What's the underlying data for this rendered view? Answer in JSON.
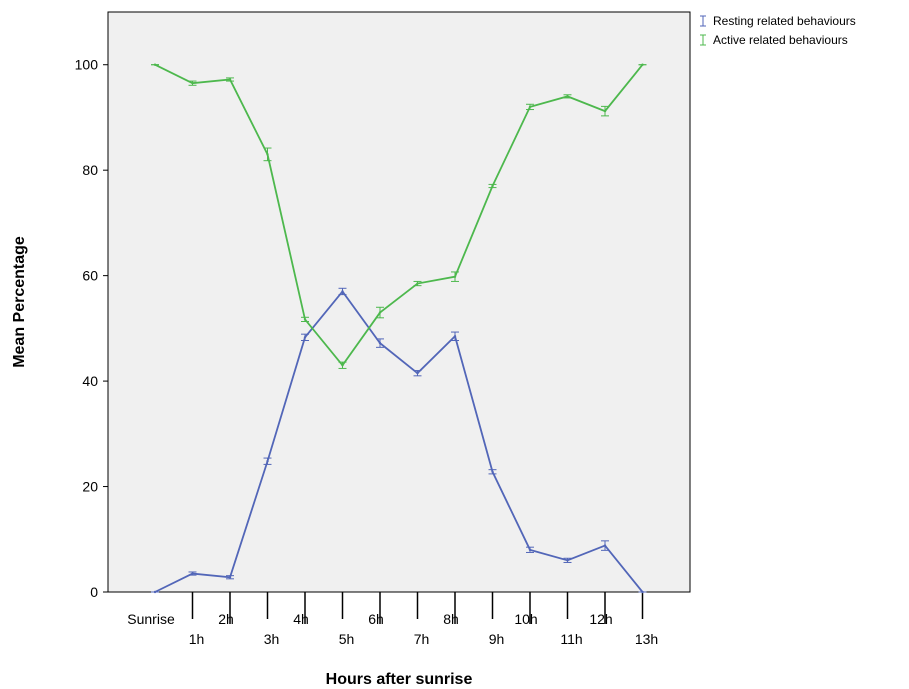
{
  "chart_data": {
    "type": "line",
    "title": "",
    "xlabel": "Hours after sunrise",
    "ylabel": "Mean Percentage",
    "categories": [
      "Sunrise",
      "1h",
      "2h",
      "3h",
      "4h",
      "5h",
      "6h",
      "7h",
      "8h",
      "9h",
      "10h",
      "11h",
      "12h",
      "13h"
    ],
    "ylim": [
      0,
      110
    ],
    "yticks": [
      0,
      20,
      40,
      60,
      80,
      100
    ],
    "grid": false,
    "legend_position": "top-right",
    "series": [
      {
        "name": "Resting related behaviours",
        "color": "#5266b8",
        "values": [
          0,
          3.5,
          2.8,
          24.8,
          48.3,
          57.0,
          47.2,
          41.5,
          48.5,
          22.8,
          8.0,
          6.0,
          8.8,
          0
        ],
        "error": [
          0,
          0.3,
          0.3,
          0.6,
          0.6,
          0.6,
          0.8,
          0.5,
          0.8,
          0.4,
          0.5,
          0.4,
          0.9,
          0
        ]
      },
      {
        "name": "Active related behaviours",
        "color": "#4db84d",
        "values": [
          100,
          96.5,
          97.2,
          83.0,
          51.7,
          43.0,
          53.0,
          58.5,
          59.8,
          77.0,
          92.0,
          94.0,
          91.2,
          100
        ],
        "error": [
          0,
          0.4,
          0.3,
          1.2,
          0.4,
          0.6,
          1.0,
          0.4,
          0.9,
          0.3,
          0.5,
          0.3,
          0.9,
          0
        ]
      }
    ]
  }
}
